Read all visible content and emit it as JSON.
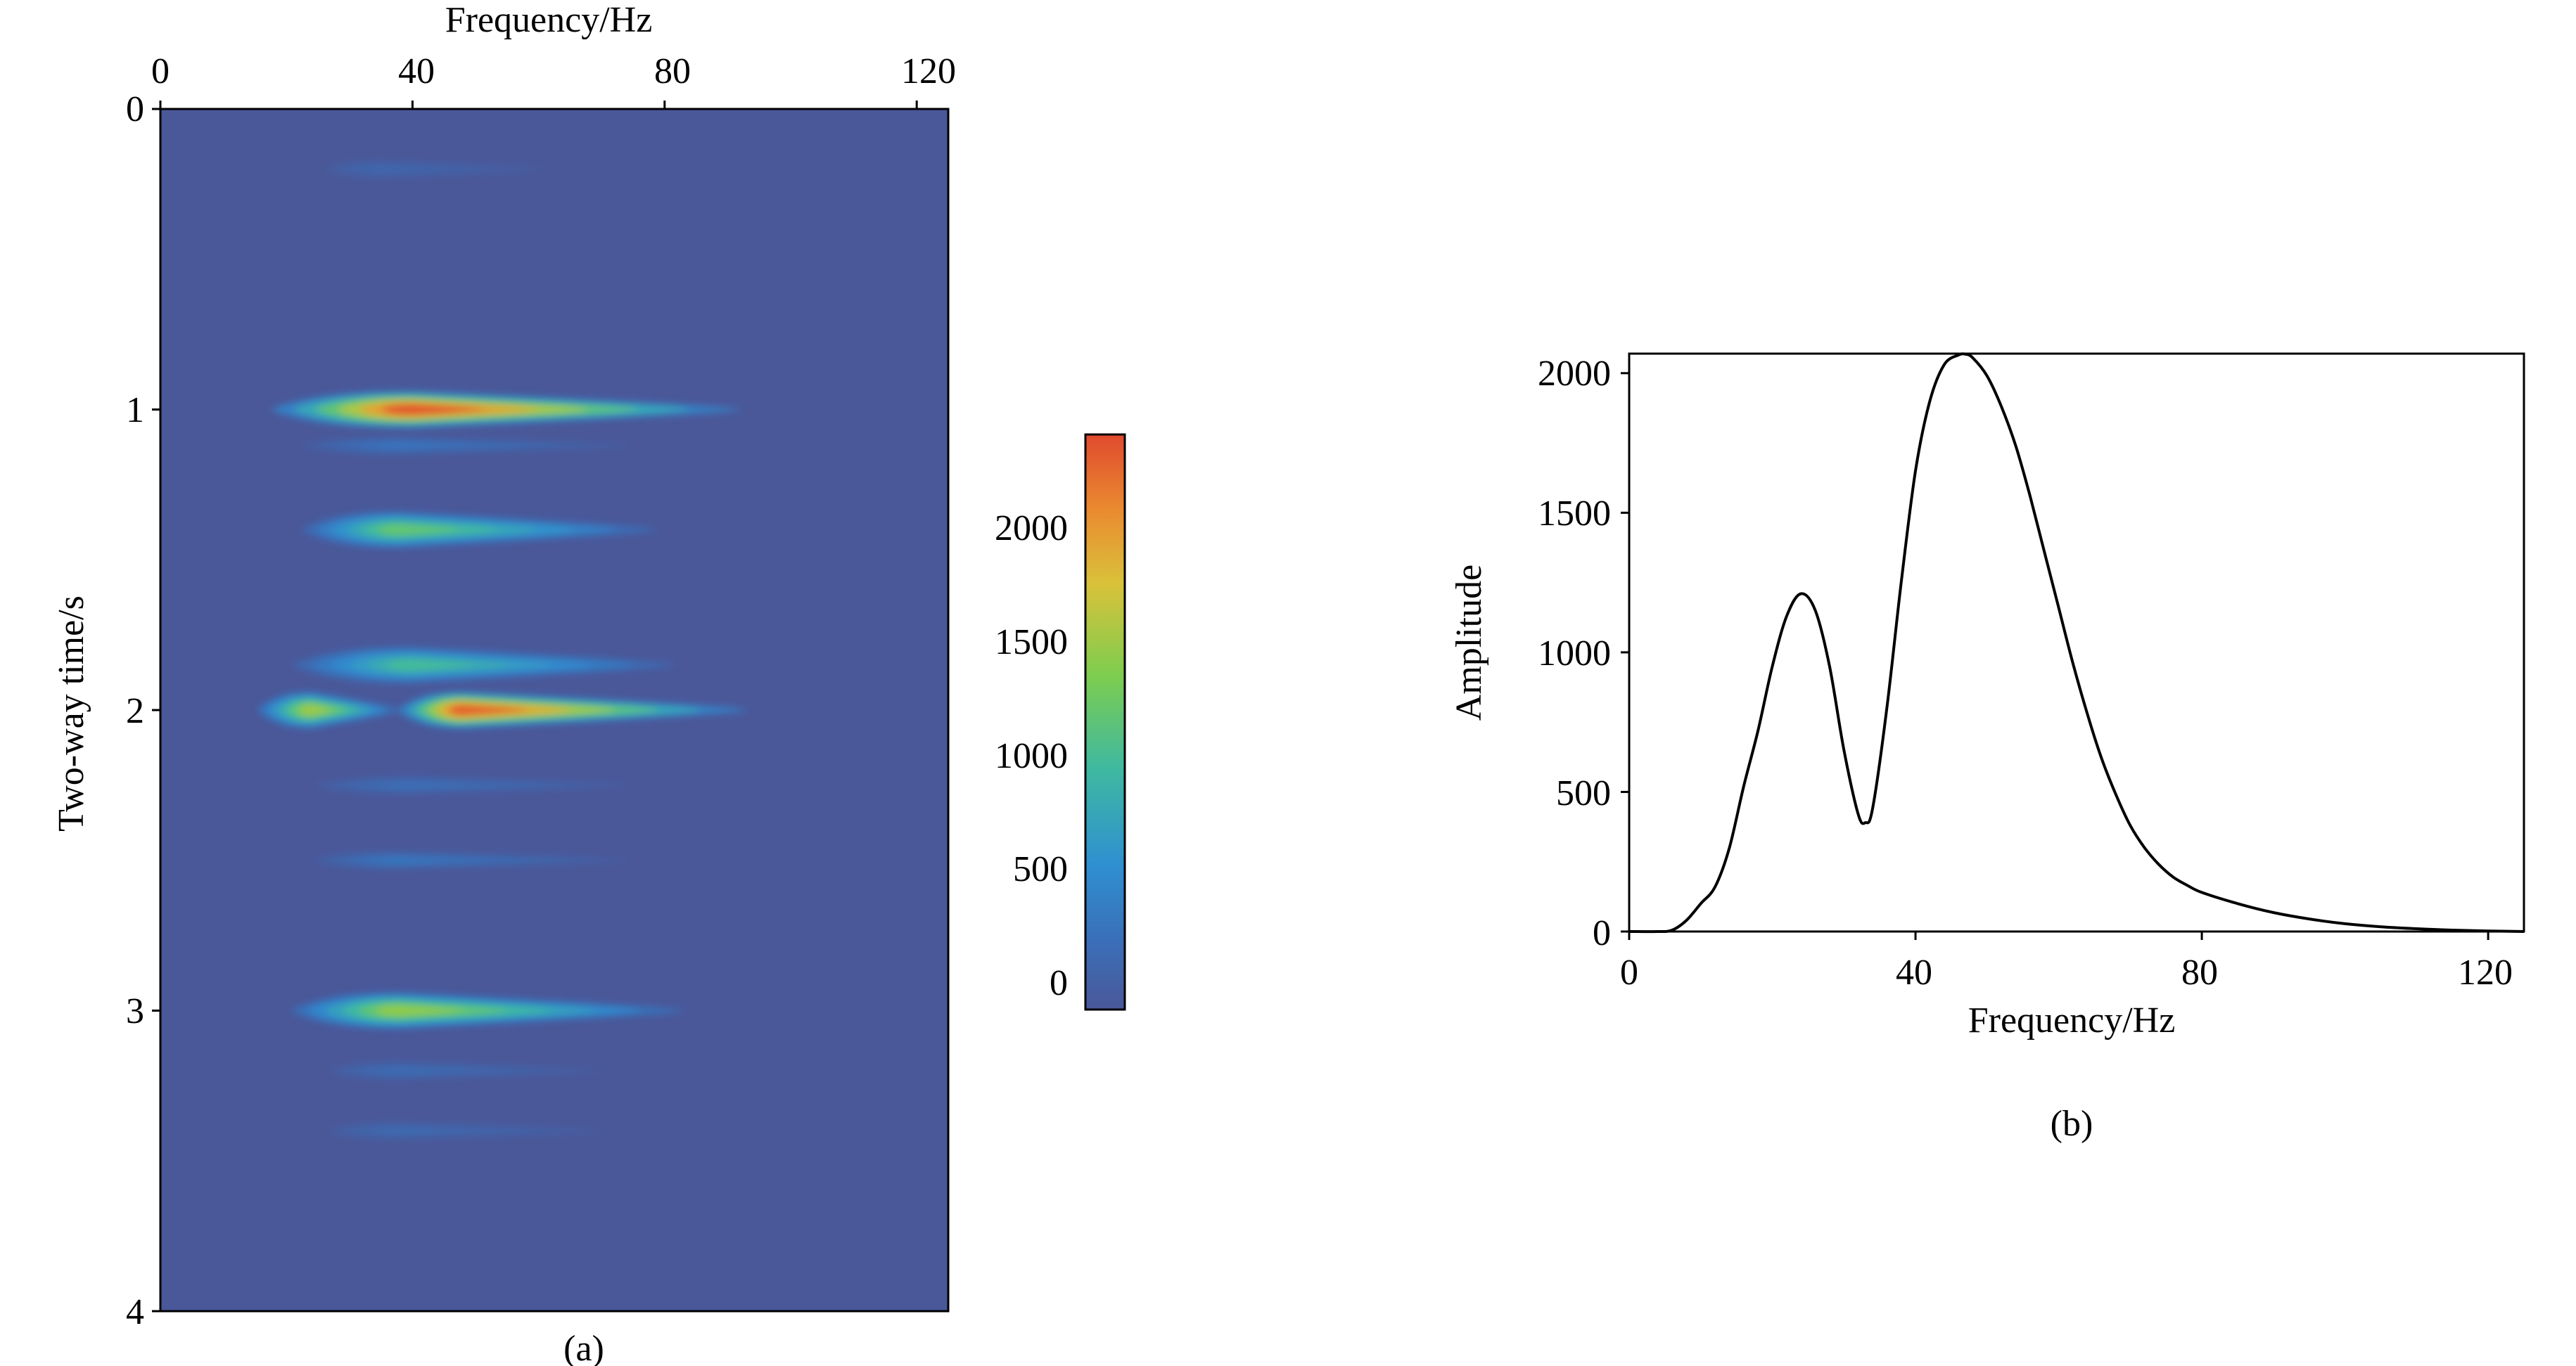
{
  "chart_data": [
    {
      "panel": "(a)",
      "type": "heatmap",
      "title": "",
      "xlabel": "Frequency/Hz",
      "ylabel": "Two-way time/s",
      "xlim": [
        0,
        125
      ],
      "ylim": [
        0,
        4
      ],
      "x_axis_position": "top",
      "y_axis_inverted": true,
      "x_ticks": [
        "0",
        "40",
        "80",
        "120"
      ],
      "y_ticks": [
        "0",
        "1",
        "2",
        "3",
        "4"
      ],
      "colorscale": [
        "#4a5899",
        "#2f8fd1",
        "#3fb9a0",
        "#7dcd4f",
        "#d9c23a",
        "#ea8a30",
        "#e04a2e"
      ],
      "background_color": "#4a5899",
      "colorbar": {
        "range": [
          -80,
          2420
        ],
        "ticks": [
          "0",
          "500",
          "1000",
          "1500",
          "2000"
        ]
      },
      "events": [
        {
          "time": 1.0,
          "peak_freq": 40,
          "amplitude": 2350,
          "freq_start": 14,
          "freq_end": 100
        },
        {
          "time": 1.12,
          "peak_freq": 38,
          "amplitude": 280,
          "freq_start": 20,
          "freq_end": 80
        },
        {
          "time": 1.4,
          "peak_freq": 38,
          "amplitude": 1200,
          "freq_start": 20,
          "freq_end": 85
        },
        {
          "time": 1.85,
          "peak_freq": 40,
          "amplitude": 1000,
          "freq_start": 18,
          "freq_end": 88
        },
        {
          "time": 2.0,
          "peak_freq": 24,
          "amplitude": 1500,
          "freq_start": 14,
          "freq_end": 40
        },
        {
          "time": 2.0,
          "peak_freq": 48,
          "amplitude": 2300,
          "freq_start": 36,
          "freq_end": 100
        },
        {
          "time": 2.25,
          "peak_freq": 40,
          "amplitude": 220,
          "freq_start": 22,
          "freq_end": 80
        },
        {
          "time": 2.5,
          "peak_freq": 38,
          "amplitude": 300,
          "freq_start": 22,
          "freq_end": 80
        },
        {
          "time": 3.0,
          "peak_freq": 38,
          "amplitude": 1450,
          "freq_start": 18,
          "freq_end": 90
        },
        {
          "time": 3.2,
          "peak_freq": 38,
          "amplitude": 180,
          "freq_start": 25,
          "freq_end": 75
        },
        {
          "time": 3.4,
          "peak_freq": 38,
          "amplitude": 150,
          "freq_start": 25,
          "freq_end": 75
        },
        {
          "time": 0.2,
          "peak_freq": 35,
          "amplitude": 110,
          "freq_start": 25,
          "freq_end": 65
        }
      ]
    },
    {
      "panel": "(b)",
      "type": "line",
      "title": "",
      "xlabel": "Frequency/Hz",
      "ylabel": "Amplitude",
      "xlim": [
        0,
        125
      ],
      "ylim": [
        0,
        2070
      ],
      "x_ticks": [
        "0",
        "40",
        "80",
        "120"
      ],
      "y_ticks": [
        "0",
        "500",
        "1000",
        "1500",
        "2000"
      ],
      "grid": false,
      "series": [
        {
          "x": [
            0,
            4,
            6,
            8,
            10,
            12,
            14,
            16,
            18,
            20,
            22,
            24,
            26,
            28,
            30,
            32,
            33,
            34,
            36,
            38,
            40,
            42,
            44,
            46,
            47,
            48,
            50,
            52,
            54,
            56,
            58,
            60,
            62,
            64,
            66,
            68,
            70,
            72,
            74,
            76,
            78,
            80,
            85,
            90,
            95,
            100,
            105,
            110,
            115,
            120,
            125
          ],
          "y": [
            0,
            0,
            5,
            40,
            100,
            160,
            300,
            520,
            720,
            950,
            1130,
            1210,
            1150,
            950,
            650,
            420,
            390,
            440,
            800,
            1250,
            1650,
            1900,
            2030,
            2065,
            2068,
            2055,
            1990,
            1880,
            1740,
            1560,
            1360,
            1160,
            960,
            780,
            620,
            490,
            380,
            300,
            240,
            195,
            165,
            140,
            100,
            68,
            45,
            28,
            17,
            10,
            5,
            2,
            0
          ]
        }
      ]
    }
  ]
}
